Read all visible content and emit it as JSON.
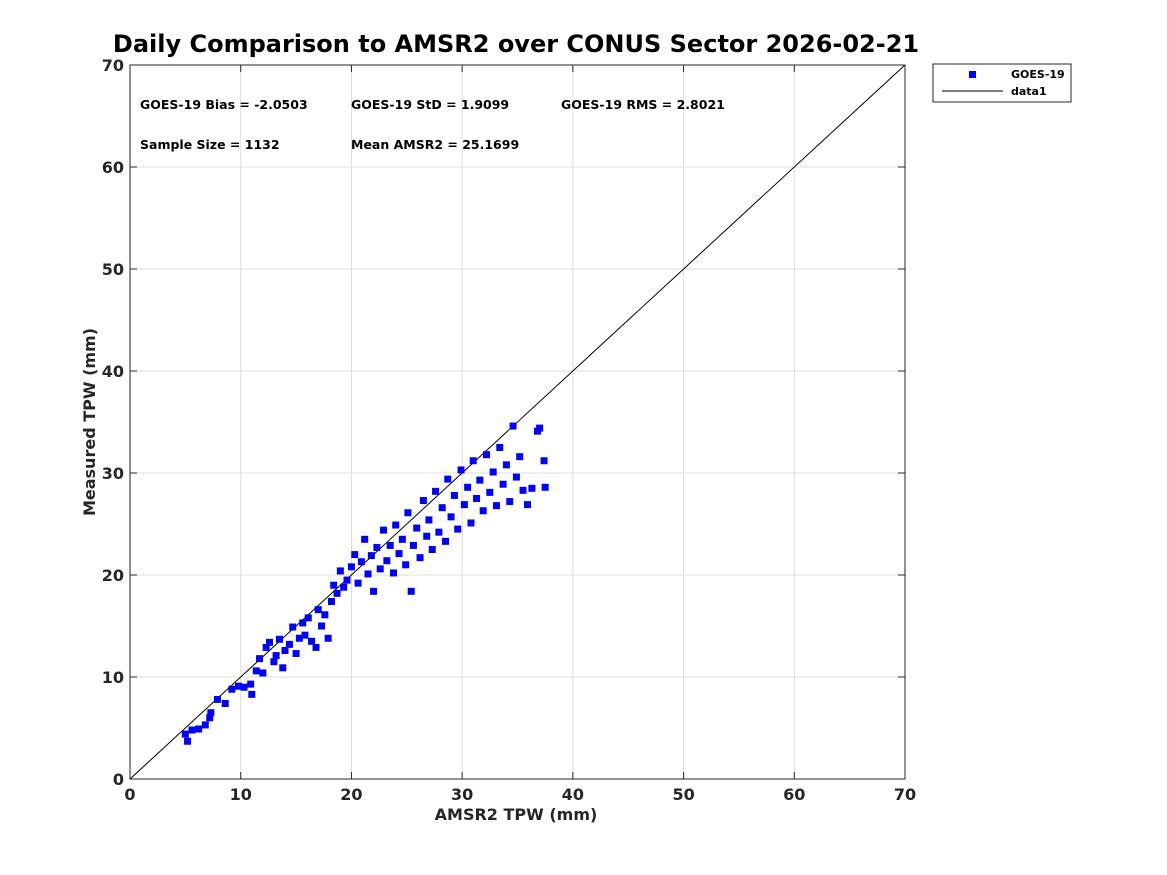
{
  "chart_data": {
    "type": "scatter",
    "title": "Daily Comparison to AMSR2 over CONUS Sector 2026-02-21",
    "xlabel": "AMSR2 TPW (mm)",
    "ylabel": "Measured TPW (mm)",
    "xlim": [
      0,
      70
    ],
    "ylim": [
      0,
      70
    ],
    "xticks": [
      "0",
      "10",
      "20",
      "30",
      "40",
      "50",
      "60",
      "70"
    ],
    "yticks": [
      "0",
      "10",
      "20",
      "30",
      "40",
      "50",
      "60",
      "70"
    ],
    "grid": true,
    "legend_position": "outside top-right",
    "stats": {
      "bias": "GOES-19 Bias = -2.0503",
      "std": "GOES-19 StD = 1.9099",
      "rms": "GOES-19 RMS = 2.8021",
      "sample": "Sample Size = 1132",
      "mean": "Mean AMSR2 = 25.1699"
    },
    "series": [
      {
        "name": "GOES-19",
        "marker": "square",
        "color": "#0000ff",
        "points": [
          [
            5.0,
            4.4
          ],
          [
            5.2,
            3.7
          ],
          [
            5.6,
            4.8
          ],
          [
            6.2,
            4.9
          ],
          [
            6.8,
            5.3
          ],
          [
            7.2,
            6.0
          ],
          [
            7.3,
            6.5
          ],
          [
            7.9,
            7.8
          ],
          [
            8.6,
            7.4
          ],
          [
            9.2,
            8.8
          ],
          [
            9.8,
            9.1
          ],
          [
            10.3,
            9.0
          ],
          [
            10.9,
            9.3
          ],
          [
            11.0,
            8.3
          ],
          [
            11.4,
            10.6
          ],
          [
            11.7,
            11.8
          ],
          [
            12.0,
            10.4
          ],
          [
            12.3,
            12.9
          ],
          [
            12.6,
            13.4
          ],
          [
            13.0,
            11.5
          ],
          [
            13.2,
            12.1
          ],
          [
            13.5,
            13.7
          ],
          [
            13.8,
            10.9
          ],
          [
            14.0,
            12.6
          ],
          [
            14.4,
            13.2
          ],
          [
            14.7,
            14.9
          ],
          [
            15.0,
            12.3
          ],
          [
            15.3,
            13.8
          ],
          [
            15.6,
            15.3
          ],
          [
            15.8,
            14.1
          ],
          [
            16.1,
            15.8
          ],
          [
            16.4,
            13.5
          ],
          [
            16.8,
            12.9
          ],
          [
            17.0,
            16.6
          ],
          [
            17.3,
            15.0
          ],
          [
            17.6,
            16.1
          ],
          [
            17.9,
            13.8
          ],
          [
            18.2,
            17.4
          ],
          [
            18.4,
            19.0
          ],
          [
            18.7,
            18.2
          ],
          [
            19.0,
            20.4
          ],
          [
            19.3,
            18.8
          ],
          [
            19.6,
            19.5
          ],
          [
            20.0,
            20.8
          ],
          [
            20.3,
            22.0
          ],
          [
            20.6,
            19.2
          ],
          [
            20.9,
            21.3
          ],
          [
            21.2,
            23.5
          ],
          [
            21.5,
            20.1
          ],
          [
            21.8,
            21.9
          ],
          [
            22.0,
            18.4
          ],
          [
            22.3,
            22.7
          ],
          [
            22.6,
            20.6
          ],
          [
            22.9,
            24.4
          ],
          [
            23.2,
            21.4
          ],
          [
            23.5,
            22.9
          ],
          [
            23.8,
            20.2
          ],
          [
            24.0,
            24.9
          ],
          [
            24.3,
            22.1
          ],
          [
            24.6,
            23.5
          ],
          [
            24.9,
            21.0
          ],
          [
            25.1,
            26.1
          ],
          [
            25.4,
            18.4
          ],
          [
            25.6,
            22.9
          ],
          [
            25.9,
            24.6
          ],
          [
            26.2,
            21.7
          ],
          [
            26.5,
            27.3
          ],
          [
            26.8,
            23.8
          ],
          [
            27.0,
            25.4
          ],
          [
            27.3,
            22.5
          ],
          [
            27.6,
            28.2
          ],
          [
            27.9,
            24.2
          ],
          [
            28.2,
            26.6
          ],
          [
            28.5,
            23.3
          ],
          [
            28.7,
            29.4
          ],
          [
            29.0,
            25.7
          ],
          [
            29.3,
            27.8
          ],
          [
            29.6,
            24.5
          ],
          [
            29.9,
            30.3
          ],
          [
            30.2,
            26.9
          ],
          [
            30.5,
            28.6
          ],
          [
            30.8,
            25.1
          ],
          [
            31.0,
            31.2
          ],
          [
            31.3,
            27.5
          ],
          [
            31.6,
            29.3
          ],
          [
            31.9,
            26.3
          ],
          [
            32.2,
            31.8
          ],
          [
            32.5,
            28.1
          ],
          [
            32.8,
            30.1
          ],
          [
            33.1,
            26.8
          ],
          [
            33.4,
            32.5
          ],
          [
            33.7,
            28.9
          ],
          [
            34.0,
            30.8
          ],
          [
            34.3,
            27.2
          ],
          [
            34.6,
            34.6
          ],
          [
            34.9,
            29.6
          ],
          [
            35.2,
            31.6
          ],
          [
            35.5,
            28.3
          ],
          [
            35.9,
            26.9
          ],
          [
            36.3,
            28.5
          ],
          [
            36.8,
            34.1
          ],
          [
            37.0,
            34.4
          ],
          [
            37.4,
            31.2
          ],
          [
            37.5,
            28.6
          ]
        ]
      },
      {
        "name": "data1",
        "type": "line",
        "color": "#000000",
        "points": [
          [
            0,
            0
          ],
          [
            70,
            70
          ]
        ]
      }
    ]
  }
}
